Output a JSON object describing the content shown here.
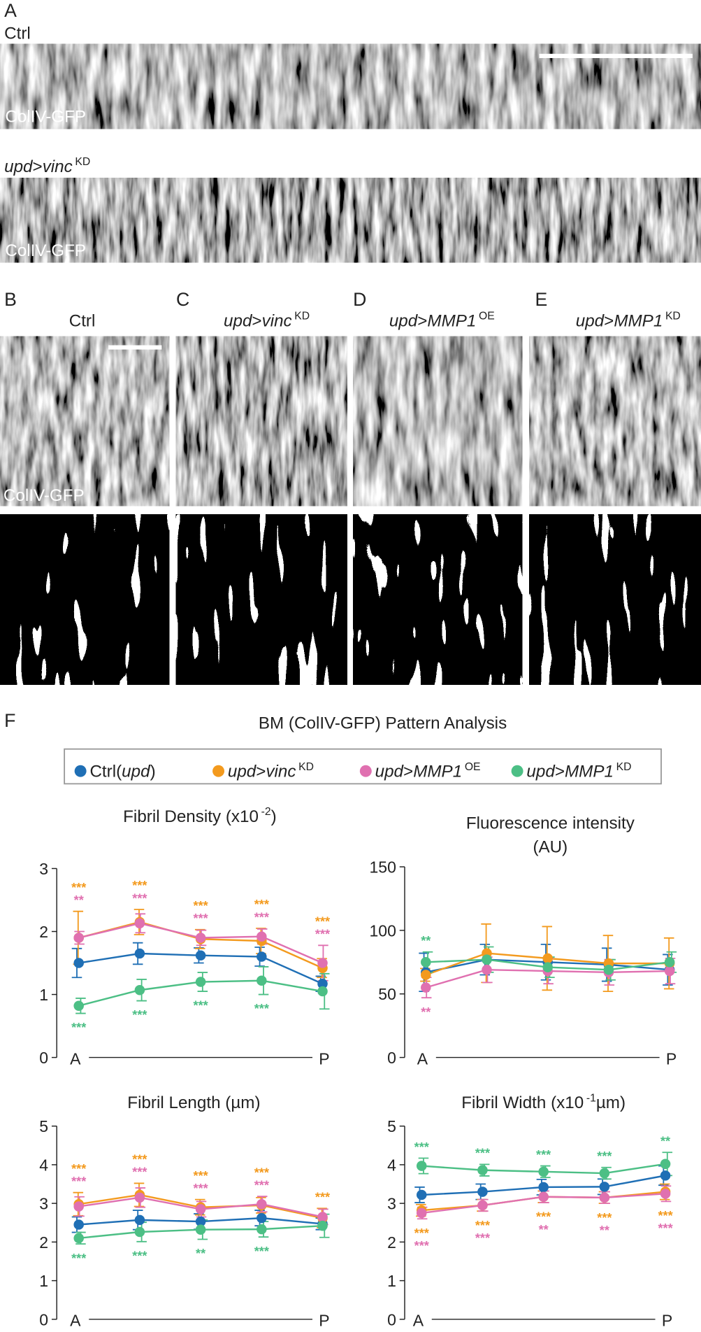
{
  "panel_a": {
    "label": "A",
    "rows": [
      {
        "title": [
          {
            "text": "Ctrl"
          }
        ],
        "caption": "ColIV-GFP"
      },
      {
        "title": [
          {
            "text": "upd",
            "style": "i"
          },
          {
            "text": ">"
          },
          {
            "text": "vinc",
            "style": "i"
          },
          {
            "text": "KD",
            "style": "sup"
          }
        ],
        "caption": "ColIV-GFP"
      }
    ]
  },
  "panels_b_e": [
    {
      "label": "B",
      "title": [
        {
          "text": "Ctrl"
        }
      ],
      "caption": "ColIV-GFP"
    },
    {
      "label": "C",
      "title": [
        {
          "text": "upd",
          "style": "i"
        },
        {
          "text": ">"
        },
        {
          "text": "vinc",
          "style": "i"
        },
        {
          "text": "KD",
          "style": "sup"
        }
      ]
    },
    {
      "label": "D",
      "title": [
        {
          "text": "upd",
          "style": "i"
        },
        {
          "text": ">"
        },
        {
          "text": "MMP1",
          "style": "i"
        },
        {
          "text": "OE",
          "style": "sup"
        }
      ]
    },
    {
      "label": "E",
      "title": [
        {
          "text": "upd",
          "style": "i"
        },
        {
          "text": ">"
        },
        {
          "text": "MMP1",
          "style": "i"
        },
        {
          "text": "KD",
          "style": "sup"
        }
      ]
    }
  ],
  "panel_f": {
    "label": "F",
    "title": "BM (ColIV-GFP) Pattern Analysis",
    "legend": [
      {
        "color": "#1f6fb5",
        "runs": [
          {
            "text": "Ctrl("
          },
          {
            "text": "upd",
            "style": "i"
          },
          {
            "text": ")"
          }
        ]
      },
      {
        "color": "#f39a1e",
        "runs": [
          {
            "text": "upd",
            "style": "i"
          },
          {
            "text": ">"
          },
          {
            "text": "vinc",
            "style": "i"
          },
          {
            "text": "KD",
            "style": "sup"
          }
        ]
      },
      {
        "color": "#e070b0",
        "runs": [
          {
            "text": "upd",
            "style": "i"
          },
          {
            "text": ">"
          },
          {
            "text": "MMP1",
            "style": "i"
          },
          {
            "text": "OE",
            "style": "sup"
          }
        ]
      },
      {
        "color": "#4cbf85",
        "runs": [
          {
            "text": "upd",
            "style": "i"
          },
          {
            "text": ">"
          },
          {
            "text": "MMP1",
            "style": "i"
          },
          {
            "text": "KD",
            "style": "sup"
          }
        ]
      }
    ]
  },
  "chart_data": [
    {
      "type": "line",
      "title": [
        [
          {
            "text": "Fibril Density (x10"
          },
          {
            "text": "-2",
            "style": "sup"
          },
          {
            "text": ")"
          }
        ]
      ],
      "categories": [
        "A",
        null,
        null,
        null,
        "P"
      ],
      "ylim": [
        0,
        3
      ],
      "yticks": [
        0,
        1,
        2,
        3
      ],
      "series": [
        {
          "values": [
            1.5,
            1.65,
            1.62,
            1.6,
            1.17
          ],
          "errors": [
            0.23,
            0.17,
            0.12,
            0.15,
            0.12
          ],
          "stars": [
            null,
            null,
            null,
            null,
            null
          ]
        },
        {
          "values": [
            1.9,
            2.15,
            1.88,
            1.85,
            1.42
          ],
          "errors": [
            0.42,
            0.2,
            0.15,
            0.2,
            0.15
          ],
          "stars": [
            "***",
            "***",
            "***",
            "***",
            "***"
          ]
        },
        {
          "values": [
            1.9,
            2.13,
            1.9,
            1.92,
            1.5
          ],
          "errors": [
            0.1,
            0.15,
            0.12,
            0.12,
            0.28
          ],
          "stars": [
            "**",
            "***",
            "***",
            "***",
            "***"
          ]
        },
        {
          "values": [
            0.82,
            1.07,
            1.2,
            1.22,
            1.05
          ],
          "errors": [
            0.12,
            0.17,
            0.15,
            0.22,
            0.28
          ],
          "stars": [
            "***",
            "***",
            "***",
            "***",
            null
          ]
        }
      ]
    },
    {
      "type": "line",
      "title": [
        [
          {
            "text": "Fluorescence intensity"
          }
        ],
        [
          {
            "text": "(AU)"
          }
        ]
      ],
      "categories": [
        "A",
        null,
        null,
        null,
        "P"
      ],
      "ylim": [
        0,
        150
      ],
      "yticks": [
        0,
        50,
        100,
        150
      ],
      "series": [
        {
          "values": [
            67,
            77,
            75,
            73,
            69
          ],
          "errors": [
            15,
            12,
            14,
            13,
            12
          ],
          "stars": [
            null,
            null,
            null,
            null,
            null
          ]
        },
        {
          "values": [
            65,
            82,
            78,
            74,
            74
          ],
          "errors": [
            5,
            23,
            25,
            22,
            20
          ],
          "stars": [
            null,
            null,
            null,
            null,
            null
          ]
        },
        {
          "values": [
            55,
            69,
            68,
            67,
            68
          ],
          "errors": [
            8,
            10,
            10,
            10,
            10
          ],
          "stars": [
            "**",
            null,
            null,
            null,
            null
          ]
        },
        {
          "values": [
            75,
            77,
            71,
            69,
            75
          ],
          "errors": [
            8,
            10,
            8,
            8,
            8
          ],
          "stars": [
            "**",
            null,
            null,
            null,
            null
          ]
        }
      ]
    },
    {
      "type": "line",
      "title": [
        [
          {
            "text": "Fibril Length (µm)"
          }
        ]
      ],
      "categories": [
        "A",
        null,
        null,
        null,
        "P"
      ],
      "ylim": [
        0,
        5
      ],
      "yticks": [
        0,
        1,
        2,
        3,
        4,
        5
      ],
      "series": [
        {
          "values": [
            2.45,
            2.57,
            2.53,
            2.62,
            2.47
          ],
          "errors": [
            0.2,
            0.25,
            0.2,
            0.2,
            0.15
          ],
          "stars": [
            null,
            null,
            null,
            null,
            null
          ]
        },
        {
          "values": [
            2.98,
            3.22,
            2.9,
            2.95,
            2.62
          ],
          "errors": [
            0.3,
            0.3,
            0.2,
            0.2,
            0.25
          ],
          "stars": [
            "***",
            "***",
            "***",
            "***",
            "***"
          ]
        },
        {
          "values": [
            2.92,
            3.15,
            2.85,
            2.98,
            2.65
          ],
          "errors": [
            0.25,
            0.25,
            0.2,
            0.2,
            0.2
          ],
          "stars": [
            "***",
            "***",
            "***",
            "***",
            null
          ]
        },
        {
          "values": [
            2.1,
            2.26,
            2.32,
            2.33,
            2.42
          ],
          "errors": [
            0.15,
            0.25,
            0.25,
            0.2,
            0.3
          ],
          "stars": [
            "***",
            "***",
            "**",
            "***",
            null
          ]
        }
      ]
    },
    {
      "type": "line",
      "title": [
        [
          {
            "text": "Fibril Width (x10"
          },
          {
            "text": "-1",
            "style": "sup"
          },
          {
            "text": "µm)"
          }
        ]
      ],
      "categories": [
        "A",
        null,
        null,
        null,
        "P"
      ],
      "ylim": [
        0,
        5
      ],
      "yticks": [
        0,
        1,
        2,
        3,
        4,
        5
      ],
      "series": [
        {
          "values": [
            3.22,
            3.3,
            3.42,
            3.43,
            3.72
          ],
          "errors": [
            0.2,
            0.2,
            0.2,
            0.2,
            0.25
          ],
          "stars": [
            null,
            null,
            null,
            null,
            null
          ]
        },
        {
          "values": [
            2.82,
            2.95,
            3.17,
            3.15,
            3.3
          ],
          "errors": [
            0.15,
            0.15,
            0.15,
            0.15,
            0.2
          ],
          "stars": [
            "***",
            "***",
            "***",
            "***",
            "***"
          ]
        },
        {
          "values": [
            2.75,
            2.95,
            3.17,
            3.15,
            3.25
          ],
          "errors": [
            0.15,
            0.15,
            0.15,
            0.15,
            0.2
          ],
          "stars": [
            "***",
            "***",
            "**",
            "**",
            "***"
          ]
        },
        {
          "values": [
            3.97,
            3.86,
            3.82,
            3.78,
            4.02
          ],
          "errors": [
            0.2,
            0.15,
            0.15,
            0.15,
            0.3
          ],
          "stars": [
            "***",
            "***",
            "***",
            "***",
            "**"
          ]
        }
      ]
    }
  ]
}
